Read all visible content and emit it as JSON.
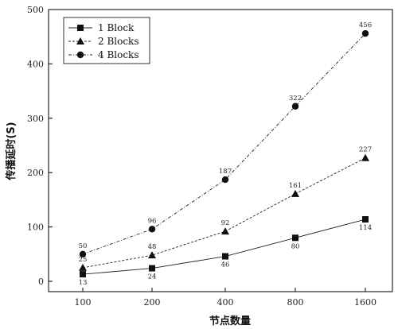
{
  "chart_data": {
    "type": "line",
    "title": "",
    "xlabel": "节点数量",
    "ylabel": "传播延时(S)",
    "categories": [
      "100",
      "200",
      "400",
      "800",
      "1600"
    ],
    "ylim": [
      0,
      500
    ],
    "yticks": [
      0,
      100,
      200,
      300,
      400,
      500
    ],
    "grid": false,
    "legend": "top-left",
    "series": [
      {
        "name": "1 Block",
        "marker": "square",
        "line_style": "solid",
        "values": [
          13,
          24,
          46,
          80,
          114
        ]
      },
      {
        "name": "2 Blocks",
        "marker": "triangle",
        "line_style": "dashed",
        "values": [
          25,
          48,
          92,
          161,
          227
        ]
      },
      {
        "name": "4 Blocks",
        "marker": "circle",
        "line_style": "dash-dot",
        "values": [
          50,
          96,
          187,
          322,
          456
        ]
      }
    ]
  }
}
